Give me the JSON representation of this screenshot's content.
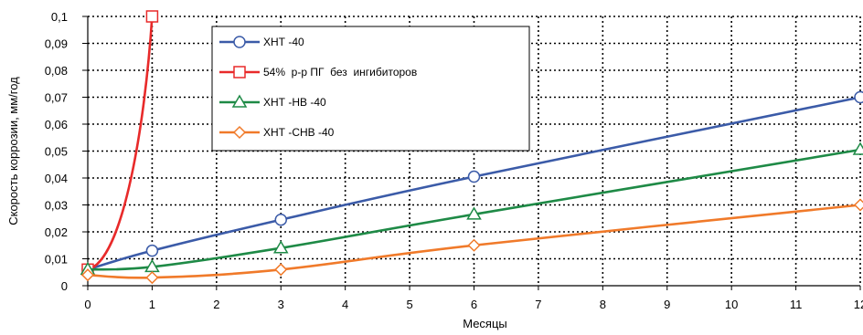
{
  "chart_data": {
    "type": "line",
    "title": "",
    "xlabel": "Месяцы",
    "ylabel": "Скорость коррозии, мм/год",
    "xlim": [
      0,
      12
    ],
    "ylim": [
      0,
      0.1
    ],
    "xticks": [
      "0",
      "1",
      "2",
      "3",
      "4",
      "5",
      "6",
      "7",
      "8",
      "9",
      "10",
      "11",
      "12"
    ],
    "yticks": [
      "0",
      "0,01",
      "0,02",
      "0,03",
      "0,04",
      "0,05",
      "0,06",
      "0,07",
      "0,08",
      "0,09",
      "0,1"
    ],
    "grid": true,
    "legend_position": "top-center",
    "series": [
      {
        "name": "ХНТ -40",
        "color": "#3b5ba8",
        "marker": "circle",
        "x": [
          0,
          1,
          3,
          6,
          12
        ],
        "y": [
          0.006,
          0.013,
          0.0245,
          0.0405,
          0.07
        ]
      },
      {
        "name": "54%  р-р ПГ  без  ингибиторов",
        "color": "#e82a2a",
        "marker": "square",
        "x": [
          0,
          1
        ],
        "y": [
          0.006,
          0.1
        ]
      },
      {
        "name": "ХНТ -НВ -40",
        "color": "#1e8a46",
        "marker": "triangle",
        "x": [
          0,
          1,
          3,
          6,
          12
        ],
        "y": [
          0.006,
          0.007,
          0.014,
          0.0265,
          0.0505
        ]
      },
      {
        "name": "ХНТ -СНВ -40",
        "color": "#f07a2a",
        "marker": "diamond",
        "x": [
          0,
          1,
          3,
          6,
          12
        ],
        "y": [
          0.004,
          0.003,
          0.006,
          0.015,
          0.03
        ]
      }
    ]
  }
}
